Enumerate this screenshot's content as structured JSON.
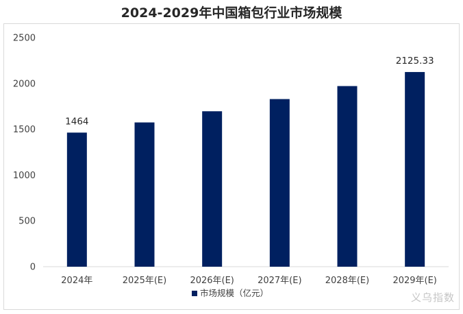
{
  "chart_data": {
    "type": "bar",
    "title": "2024-2029年中国箱包行业市场规模",
    "categories": [
      "2024年",
      "2025年(E)",
      "2026年(E)",
      "2027年(E)",
      "2028年(E)",
      "2029年(E)"
    ],
    "series": [
      {
        "name": "市场规模（亿元）",
        "values": [
          1464,
          1575,
          1697,
          1830,
          1972,
          2125.33
        ],
        "color": "#002060"
      }
    ],
    "data_labels": [
      "1464",
      "",
      "",
      "",
      "",
      "2125.33"
    ],
    "ylim": [
      0,
      2500
    ],
    "yticks": [
      "0",
      "500",
      "1000",
      "1500",
      "2000",
      "2500"
    ],
    "grid": false,
    "legend_position": "bottom"
  },
  "watermark": "义乌指数"
}
